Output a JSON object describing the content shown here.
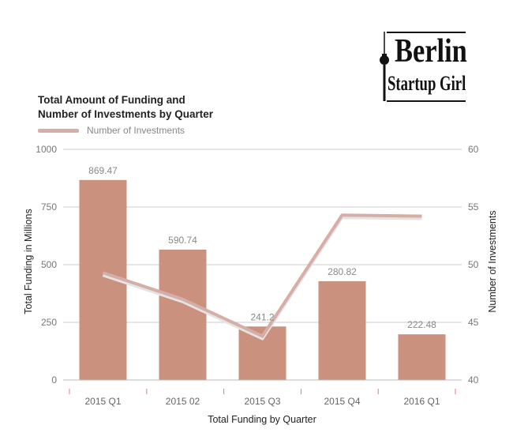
{
  "chart_data": {
    "type": "bar",
    "title": [
      "Total Amount of Funding and",
      "Number of Investments by Quarter"
    ],
    "xlabel": "Total Funding by Quarter",
    "ylabel": "Total Funding in Millions",
    "y2label": "Number of Investments",
    "categories": [
      "2015 Q1",
      "2015 02",
      "2015 Q3",
      "2015 Q4",
      "2016 Q1"
    ],
    "series": [
      {
        "name": "Total Funding",
        "type": "bar",
        "axis": "left",
        "values": [
          869.47,
          590.74,
          241.2,
          280.82,
          222.48
        ],
        "rendered_values": [
          867,
          565,
          232,
          428,
          198
        ],
        "labels": [
          "869.47",
          "590.74",
          "241.2",
          "280.82",
          "222.48"
        ],
        "color": "#c9917e"
      },
      {
        "name": "Number of Investments",
        "type": "line",
        "axis": "right",
        "values": [
          49.3,
          47,
          43.8,
          54.3,
          54.2
        ],
        "color": "#d6aea8"
      }
    ],
    "ylim": [
      0,
      1000
    ],
    "yticks": [
      "0",
      "250",
      "500",
      "750",
      "1000"
    ],
    "y2lim": [
      40,
      60
    ],
    "y2ticks": [
      "40",
      "45",
      "50",
      "55",
      "60"
    ],
    "legend": "top-left",
    "grid": true
  },
  "logo": {
    "line1": "Berlin",
    "line2": "Startup Girl"
  },
  "colors": {
    "bar": "#c9917e",
    "line": "#d6aea8",
    "grid": "#cccccc",
    "tick_mark": "#d9807a",
    "text": "#555555"
  }
}
